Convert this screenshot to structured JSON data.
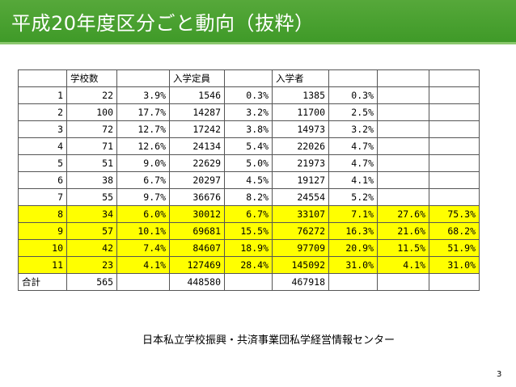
{
  "slide": {
    "title": "平成20年度区分ごと動向（抜粋）",
    "footer_note": "日本私立学校振興・共済事業団私学経営情報センター",
    "page_number": "3",
    "accent_color": "#3f9a28",
    "highlight_color": "#ffff00"
  },
  "table": {
    "headers": [
      "",
      "学校数",
      "",
      "入学定員",
      "",
      "入学者",
      "",
      "",
      ""
    ],
    "rows": [
      {
        "cells": [
          "1",
          "22",
          "3.9%",
          "1546",
          "0.3%",
          "1385",
          "0.3%",
          "",
          ""
        ],
        "highlighted": false
      },
      {
        "cells": [
          "2",
          "100",
          "17.7%",
          "14287",
          "3.2%",
          "11700",
          "2.5%",
          "",
          ""
        ],
        "highlighted": false
      },
      {
        "cells": [
          "3",
          "72",
          "12.7%",
          "17242",
          "3.8%",
          "14973",
          "3.2%",
          "",
          ""
        ],
        "highlighted": false
      },
      {
        "cells": [
          "4",
          "71",
          "12.6%",
          "24134",
          "5.4%",
          "22026",
          "4.7%",
          "",
          ""
        ],
        "highlighted": false
      },
      {
        "cells": [
          "5",
          "51",
          "9.0%",
          "22629",
          "5.0%",
          "21973",
          "4.7%",
          "",
          ""
        ],
        "highlighted": false
      },
      {
        "cells": [
          "6",
          "38",
          "6.7%",
          "20297",
          "4.5%",
          "19127",
          "4.1%",
          "",
          ""
        ],
        "highlighted": false
      },
      {
        "cells": [
          "7",
          "55",
          "9.7%",
          "36676",
          "8.2%",
          "24554",
          "5.2%",
          "",
          ""
        ],
        "highlighted": false
      },
      {
        "cells": [
          "8",
          "34",
          "6.0%",
          "30012",
          "6.7%",
          "33107",
          "7.1%",
          "27.6%",
          "75.3%"
        ],
        "highlighted": true
      },
      {
        "cells": [
          "9",
          "57",
          "10.1%",
          "69681",
          "15.5%",
          "76272",
          "16.3%",
          "21.6%",
          "68.2%"
        ],
        "highlighted": true
      },
      {
        "cells": [
          "10",
          "42",
          "7.4%",
          "84607",
          "18.9%",
          "97709",
          "20.9%",
          "11.5%",
          "51.9%"
        ],
        "highlighted": true
      },
      {
        "cells": [
          "11",
          "23",
          "4.1%",
          "127469",
          "28.4%",
          "145092",
          "31.0%",
          "4.1%",
          "31.0%"
        ],
        "highlighted": true
      }
    ],
    "total": {
      "cells": [
        "合計",
        "565",
        "",
        "448580",
        "",
        "467918",
        "",
        "",
        ""
      ]
    }
  }
}
